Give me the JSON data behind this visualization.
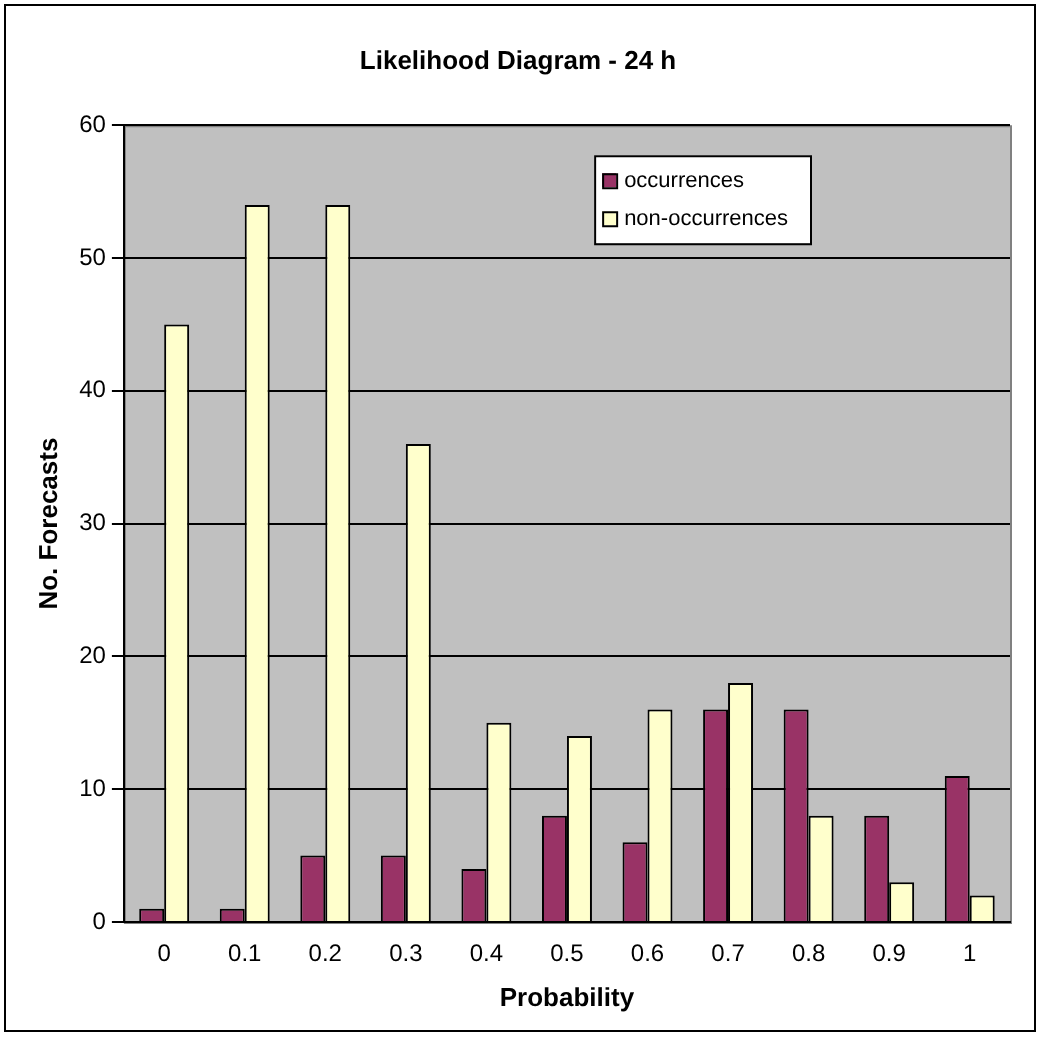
{
  "chart_data": {
    "type": "bar",
    "title": "Likelihood Diagram - 24 h",
    "xlabel": "Probability",
    "ylabel": "No. Forecasts",
    "categories": [
      "0",
      "0.1",
      "0.2",
      "0.3",
      "0.4",
      "0.5",
      "0.6",
      "0.7",
      "0.8",
      "0.9",
      "1"
    ],
    "series": [
      {
        "name": "occurrences",
        "color": "#993366",
        "values": [
          1,
          1,
          5,
          5,
          4,
          8,
          6,
          16,
          16,
          8,
          11
        ]
      },
      {
        "name": "non-occurrences",
        "color": "#ffffcc",
        "values": [
          45,
          54,
          54,
          36,
          15,
          14,
          16,
          18,
          8,
          3,
          2
        ]
      }
    ],
    "ylim": [
      0,
      60
    ],
    "yticks": [
      0,
      10,
      20,
      30,
      40,
      50,
      60
    ],
    "grid": "y",
    "legend": "top right"
  }
}
